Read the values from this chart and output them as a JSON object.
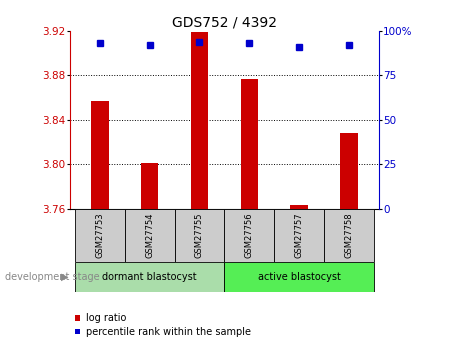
{
  "title": "GDS752 / 4392",
  "samples": [
    "GSM27753",
    "GSM27754",
    "GSM27755",
    "GSM27756",
    "GSM27757",
    "GSM27758"
  ],
  "log_ratio": [
    3.857,
    3.801,
    3.919,
    3.877,
    3.763,
    3.828
  ],
  "percentile_rank": [
    93,
    92,
    94,
    93,
    91,
    92
  ],
  "log_ratio_base": 3.76,
  "ylim_left": [
    3.76,
    3.92
  ],
  "yticks_left": [
    3.76,
    3.8,
    3.84,
    3.88,
    3.92
  ],
  "yticks_right": [
    0,
    25,
    50,
    75,
    100
  ],
  "ylim_right": [
    0,
    100
  ],
  "bar_color": "#cc0000",
  "dot_color": "#0000cc",
  "groups": [
    {
      "label": "dormant blastocyst",
      "indices": [
        0,
        1,
        2
      ]
    },
    {
      "label": "active blastocyst",
      "indices": [
        3,
        4,
        5
      ]
    }
  ],
  "group_colors": [
    "#aaddaa",
    "#55ee55"
  ],
  "left_axis_color": "#cc0000",
  "right_axis_color": "#0000cc",
  "sample_box_color": "#cccccc",
  "dev_stage_label": "development stage",
  "legend_log_ratio": "log ratio",
  "legend_percentile": "percentile rank within the sample",
  "grid_yticks": [
    3.8,
    3.84,
    3.88
  ]
}
